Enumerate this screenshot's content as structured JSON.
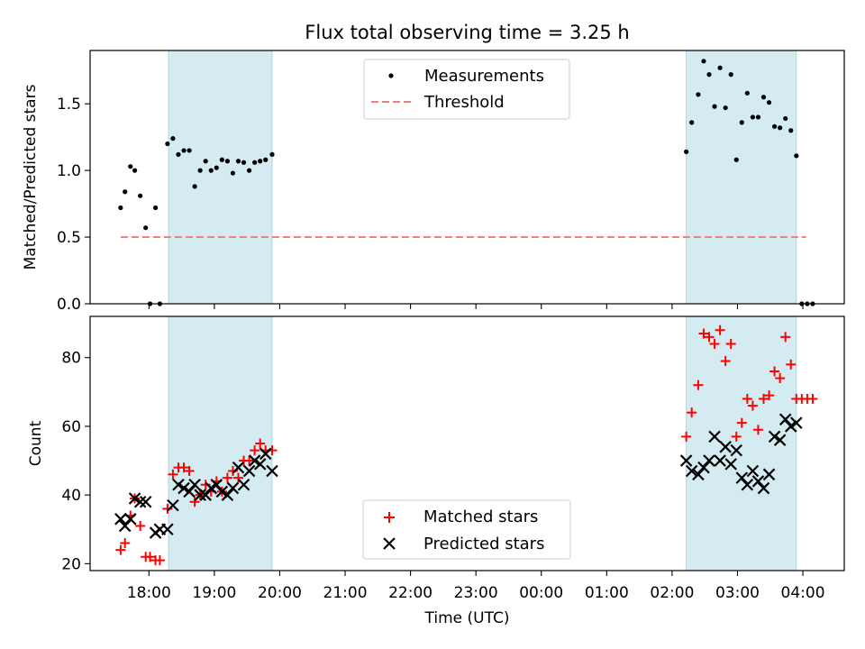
{
  "chart_data": [
    {
      "type": "scatter",
      "title": "Flux total observing time = 3.25 h",
      "xlabel": "",
      "ylabel": "Matched/Predicted stars",
      "ylim": [
        0,
        1.9
      ],
      "xlim": [
        "17:06",
        "04:38"
      ],
      "yticks": [
        "0.0",
        "0.5",
        "1.0",
        "1.5"
      ],
      "grid": false,
      "legend_position": "top-center",
      "shaded_spans": [
        [
          "18:18",
          "19:53"
        ],
        [
          "02:13",
          "03:54"
        ]
      ],
      "series": [
        {
          "name": "Measurements",
          "color": "#000000",
          "marker": "dot",
          "points": [
            [
              "17:34",
              0.72
            ],
            [
              "17:38",
              0.84
            ],
            [
              "17:43",
              1.03
            ],
            [
              "17:47",
              1.0
            ],
            [
              "17:52",
              0.81
            ],
            [
              "17:57",
              0.57
            ],
            [
              "18:01",
              0.0
            ],
            [
              "18:06",
              0.72
            ],
            [
              "18:10",
              0.0
            ],
            [
              "18:17",
              1.2
            ],
            [
              "18:22",
              1.24
            ],
            [
              "18:27",
              1.12
            ],
            [
              "18:32",
              1.15
            ],
            [
              "18:37",
              1.15
            ],
            [
              "18:42",
              0.88
            ],
            [
              "18:47",
              1.0
            ],
            [
              "18:52",
              1.07
            ],
            [
              "18:57",
              1.0
            ],
            [
              "19:02",
              1.02
            ],
            [
              "19:07",
              1.08
            ],
            [
              "19:12",
              1.07
            ],
            [
              "19:17",
              0.98
            ],
            [
              "19:22",
              1.07
            ],
            [
              "19:27",
              1.06
            ],
            [
              "19:32",
              1.0
            ],
            [
              "19:37",
              1.06
            ],
            [
              "19:42",
              1.07
            ],
            [
              "19:47",
              1.08
            ],
            [
              "19:53",
              1.12
            ],
            [
              "02:13",
              1.14
            ],
            [
              "02:18",
              1.36
            ],
            [
              "02:24",
              1.57
            ],
            [
              "02:29",
              1.82
            ],
            [
              "02:34",
              1.72
            ],
            [
              "02:39",
              1.48
            ],
            [
              "02:44",
              1.77
            ],
            [
              "02:49",
              1.47
            ],
            [
              "02:54",
              1.72
            ],
            [
              "02:59",
              1.08
            ],
            [
              "03:04",
              1.36
            ],
            [
              "03:09",
              1.58
            ],
            [
              "03:14",
              1.4
            ],
            [
              "03:19",
              1.4
            ],
            [
              "03:24",
              1.55
            ],
            [
              "03:29",
              1.51
            ],
            [
              "03:34",
              1.33
            ],
            [
              "03:39",
              1.32
            ],
            [
              "03:44",
              1.39
            ],
            [
              "03:49",
              1.3
            ],
            [
              "03:54",
              1.11
            ],
            [
              "03:59",
              0.0
            ],
            [
              "04:04",
              0.0
            ],
            [
              "04:09",
              0.0
            ]
          ]
        },
        {
          "name": "Threshold",
          "color": "#f08080",
          "marker": "dashed-line",
          "points": [
            [
              "17:34",
              0.5
            ],
            [
              "04:03",
              0.5
            ]
          ]
        }
      ]
    },
    {
      "type": "scatter",
      "title": "",
      "xlabel": "Time (UTC)",
      "ylabel": "Count",
      "ylim": [
        18,
        92
      ],
      "xlim": [
        "17:06",
        "04:38"
      ],
      "yticks": [
        "20",
        "40",
        "60",
        "80"
      ],
      "xticks": [
        "18:00",
        "19:00",
        "20:00",
        "21:00",
        "22:00",
        "23:00",
        "00:00",
        "01:00",
        "02:00",
        "03:00",
        "04:00"
      ],
      "grid": false,
      "legend_position": "bottom-center",
      "shaded_spans": [
        [
          "18:18",
          "19:53"
        ],
        [
          "02:13",
          "03:54"
        ]
      ],
      "series": [
        {
          "name": "Matched stars",
          "color": "#ff0000",
          "marker": "plus",
          "points": [
            [
              "17:34",
              24
            ],
            [
              "17:38",
              26
            ],
            [
              "17:43",
              34
            ],
            [
              "17:47",
              39
            ],
            [
              "17:52",
              31
            ],
            [
              "17:57",
              22
            ],
            [
              "18:01",
              22
            ],
            [
              "18:06",
              21
            ],
            [
              "18:10",
              21
            ],
            [
              "18:17",
              36
            ],
            [
              "18:22",
              46
            ],
            [
              "18:27",
              48
            ],
            [
              "18:32",
              48
            ],
            [
              "18:37",
              47
            ],
            [
              "18:42",
              38
            ],
            [
              "18:47",
              40
            ],
            [
              "18:52",
              43
            ],
            [
              "18:57",
              41
            ],
            [
              "19:02",
              44
            ],
            [
              "19:07",
              41
            ],
            [
              "19:12",
              45
            ],
            [
              "19:17",
              47
            ],
            [
              "19:22",
              45
            ],
            [
              "19:27",
              50
            ],
            [
              "19:32",
              50
            ],
            [
              "19:37",
              53
            ],
            [
              "19:42",
              55
            ],
            [
              "19:47",
              53
            ],
            [
              "19:53",
              53
            ],
            [
              "02:13",
              57
            ],
            [
              "02:18",
              64
            ],
            [
              "02:24",
              72
            ],
            [
              "02:29",
              87
            ],
            [
              "02:34",
              86
            ],
            [
              "02:39",
              84
            ],
            [
              "02:44",
              88
            ],
            [
              "02:49",
              79
            ],
            [
              "02:54",
              84
            ],
            [
              "02:59",
              57
            ],
            [
              "03:04",
              61
            ],
            [
              "03:09",
              68
            ],
            [
              "03:14",
              66
            ],
            [
              "03:19",
              59
            ],
            [
              "03:24",
              68
            ],
            [
              "03:29",
              69
            ],
            [
              "03:34",
              76
            ],
            [
              "03:39",
              74
            ],
            [
              "03:44",
              86
            ],
            [
              "03:49",
              78
            ],
            [
              "03:54",
              68
            ],
            [
              "03:59",
              68
            ],
            [
              "04:04",
              68
            ],
            [
              "04:09",
              68
            ]
          ]
        },
        {
          "name": "Predicted stars",
          "color": "#000000",
          "marker": "x",
          "points": [
            [
              "17:34",
              33
            ],
            [
              "17:38",
              31
            ],
            [
              "17:43",
              33
            ],
            [
              "17:47",
              39
            ],
            [
              "17:52",
              38
            ],
            [
              "17:57",
              38
            ],
            [
              "18:06",
              29
            ],
            [
              "18:10",
              30
            ],
            [
              "18:17",
              30
            ],
            [
              "18:22",
              37
            ],
            [
              "18:27",
              43
            ],
            [
              "18:32",
              42
            ],
            [
              "18:37",
              41
            ],
            [
              "18:42",
              43
            ],
            [
              "18:47",
              40
            ],
            [
              "18:52",
              40
            ],
            [
              "18:57",
              42
            ],
            [
              "19:02",
              43
            ],
            [
              "19:07",
              41
            ],
            [
              "19:12",
              40
            ],
            [
              "19:17",
              42
            ],
            [
              "19:22",
              48
            ],
            [
              "19:27",
              43
            ],
            [
              "19:32",
              47
            ],
            [
              "19:37",
              50
            ],
            [
              "19:42",
              49
            ],
            [
              "19:47",
              52
            ],
            [
              "19:53",
              47
            ],
            [
              "02:13",
              50
            ],
            [
              "02:18",
              47
            ],
            [
              "02:24",
              46
            ],
            [
              "02:29",
              48
            ],
            [
              "02:34",
              50
            ],
            [
              "02:39",
              57
            ],
            [
              "02:44",
              50
            ],
            [
              "02:49",
              54
            ],
            [
              "02:54",
              49
            ],
            [
              "02:59",
              53
            ],
            [
              "03:04",
              45
            ],
            [
              "03:09",
              43
            ],
            [
              "03:14",
              47
            ],
            [
              "03:19",
              44
            ],
            [
              "03:24",
              42
            ],
            [
              "03:29",
              46
            ],
            [
              "03:34",
              57
            ],
            [
              "03:39",
              56
            ],
            [
              "03:44",
              62
            ],
            [
              "03:49",
              60
            ],
            [
              "03:54",
              61
            ]
          ]
        }
      ]
    }
  ]
}
